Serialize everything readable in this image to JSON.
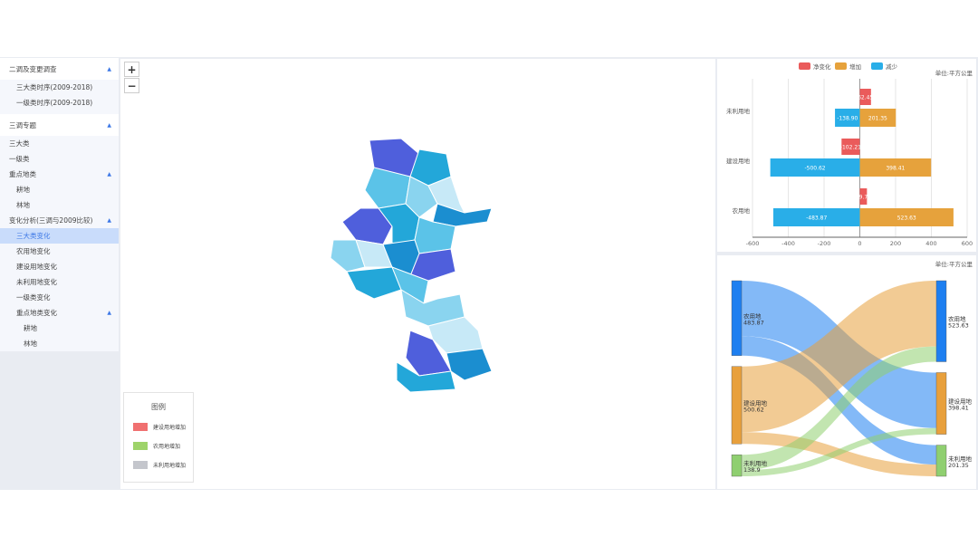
{
  "sidebar": {
    "groups": [
      {
        "label": "二调及变更调查",
        "items": [
          {
            "label": "三大类时序(2009-2018)"
          },
          {
            "label": "一级类时序(2009-2018)"
          }
        ]
      },
      {
        "label": "三调专题",
        "items": [
          {
            "label": "三大类",
            "level": 1
          },
          {
            "label": "一级类",
            "level": 1
          },
          {
            "label": "重点地类",
            "level": 1,
            "caret": true
          },
          {
            "label": "耕地",
            "level": 2
          },
          {
            "label": "林地",
            "level": 2
          },
          {
            "label": "变化分析(三调与2009比较)",
            "level": 1,
            "caret": true
          },
          {
            "label": "三大类变化",
            "level": 2,
            "selected": true
          },
          {
            "label": "农用地变化",
            "level": 2
          },
          {
            "label": "建设用地变化",
            "level": 2
          },
          {
            "label": "未利用地变化",
            "level": 2
          },
          {
            "label": "一级类变化",
            "level": 2
          },
          {
            "label": "重点地类变化",
            "level": 2,
            "caret": true
          },
          {
            "label": "耕地",
            "level": 3
          },
          {
            "label": "林地",
            "level": 3
          }
        ]
      }
    ]
  },
  "map": {
    "zoom_in": "+",
    "zoom_out": "−",
    "legend": {
      "title": "图例",
      "items": [
        {
          "label": "建设用地增加",
          "color": "#f07070"
        },
        {
          "label": "农用地增加",
          "color": "#9ed36a"
        },
        {
          "label": "未利用地增加",
          "color": "#c4c6cc"
        }
      ]
    },
    "colors": [
      "#4f5fdc",
      "#23a7d9",
      "#5bc3e8",
      "#8ad4ef",
      "#c7e9f7",
      "#1b8ed0"
    ]
  },
  "chart_data": [
    {
      "type": "bar",
      "orientation": "horizontal",
      "unit": "单位:平方公里",
      "categories": [
        "未利用地",
        "建设用地",
        "农用地"
      ],
      "series": [
        {
          "name": "净变化",
          "color": "#ea5b5b",
          "values": [
            62.45,
            -102.21,
            39.76
          ]
        },
        {
          "name": "增加",
          "color": "#e6a23c",
          "values": [
            201.35,
            398.41,
            523.63
          ]
        },
        {
          "name": "减少",
          "color": "#29aee8",
          "values": [
            -138.9,
            -500.62,
            -483.87
          ]
        }
      ],
      "xlim": [
        -600,
        600
      ],
      "xticks": [
        "-600",
        "-400",
        "-200",
        "0",
        "200",
        "400",
        "600"
      ],
      "grid": true,
      "legend": "top"
    },
    {
      "type": "sankey",
      "unit": "单位:平方公里",
      "left_nodes": [
        {
          "name": "农用地",
          "value": "483.87",
          "color": "#1e7ff0"
        },
        {
          "name": "建设用地",
          "value": "500.62",
          "color": "#e8a03c"
        },
        {
          "name": "未利用地",
          "value": "138.9",
          "color": "#8fcf70"
        }
      ],
      "right_nodes": [
        {
          "name": "农用地",
          "value": "523.63",
          "color": "#1e7ff0"
        },
        {
          "name": "建设用地",
          "value": "398.41",
          "color": "#e8a03c"
        },
        {
          "name": "未利用地",
          "value": "201.35",
          "color": "#8fcf70"
        }
      ],
      "links": [
        {
          "from": 0,
          "to": 1,
          "value": 358.41
        },
        {
          "from": 0,
          "to": 2,
          "value": 125.46
        },
        {
          "from": 1,
          "to": 0,
          "value": 424.73
        },
        {
          "from": 1,
          "to": 2,
          "value": 75.89
        },
        {
          "from": 2,
          "to": 0,
          "value": 98.9
        },
        {
          "from": 2,
          "to": 1,
          "value": 40
        }
      ]
    }
  ]
}
